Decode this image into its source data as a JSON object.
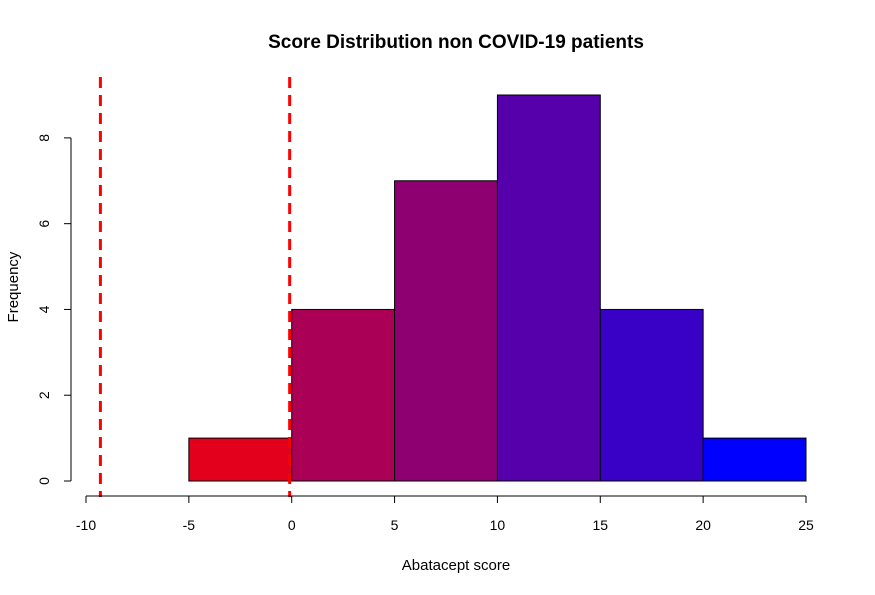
{
  "chart_data": {
    "type": "bar",
    "subtype": "histogram",
    "title": "Score Distribution non COVID-19 patients",
    "xlabel": "Abatacept score",
    "ylabel": "Frequency",
    "bins": [
      {
        "start": -5,
        "end": 0,
        "count": 1,
        "color": "#E3001C"
      },
      {
        "start": 0,
        "end": 5,
        "count": 4,
        "color": "#AA0055"
      },
      {
        "start": 5,
        "end": 10,
        "count": 7,
        "color": "#8E0071"
      },
      {
        "start": 10,
        "end": 15,
        "count": 9,
        "color": "#5500AA"
      },
      {
        "start": 15,
        "end": 20,
        "count": 4,
        "color": "#3900C6"
      },
      {
        "start": 20,
        "end": 25,
        "count": 1,
        "color": "#0000FF"
      }
    ],
    "reference_lines": [
      {
        "x": -9.3,
        "color": "#FF0000",
        "style": "dashed"
      },
      {
        "x": -0.1,
        "color": "#FF0000",
        "style": "dashed"
      }
    ],
    "xlim": [
      -10,
      25
    ],
    "ylim": [
      0,
      9
    ],
    "x_ticks": [
      -10,
      -5,
      0,
      5,
      10,
      15,
      20,
      25
    ],
    "x_tick_labels": [
      "-10",
      "-5",
      "0",
      "5",
      "10",
      "15",
      "20",
      "25"
    ],
    "y_ticks": [
      0,
      2,
      4,
      6,
      8
    ],
    "y_tick_labels": [
      "0",
      "2",
      "4",
      "6",
      "8"
    ],
    "grid": false,
    "legend": "none"
  }
}
